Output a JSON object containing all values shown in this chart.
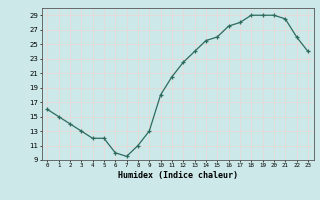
{
  "x": [
    0,
    1,
    2,
    3,
    4,
    5,
    6,
    7,
    8,
    9,
    10,
    11,
    12,
    13,
    14,
    15,
    16,
    17,
    18,
    19,
    20,
    21,
    22,
    23
  ],
  "y": [
    16,
    15,
    14,
    13,
    12,
    12,
    10,
    9.5,
    11,
    13,
    18,
    20.5,
    22.5,
    24,
    25.5,
    26,
    27.5,
    28,
    29,
    29,
    29,
    28.5,
    26,
    24
  ],
  "xlabel": "Humidex (Indice chaleur)",
  "xlim": [
    -0.5,
    23.5
  ],
  "ylim": [
    9,
    30
  ],
  "yticks": [
    9,
    11,
    13,
    15,
    17,
    19,
    21,
    23,
    25,
    27,
    29
  ],
  "xticks": [
    0,
    1,
    2,
    3,
    4,
    5,
    6,
    7,
    8,
    9,
    10,
    11,
    12,
    13,
    14,
    15,
    16,
    17,
    18,
    19,
    20,
    21,
    22,
    23
  ],
  "line_color": "#2d6b5e",
  "bg_color": "#cce8e8",
  "grid_color": "#e8d8d8",
  "marker": "+"
}
